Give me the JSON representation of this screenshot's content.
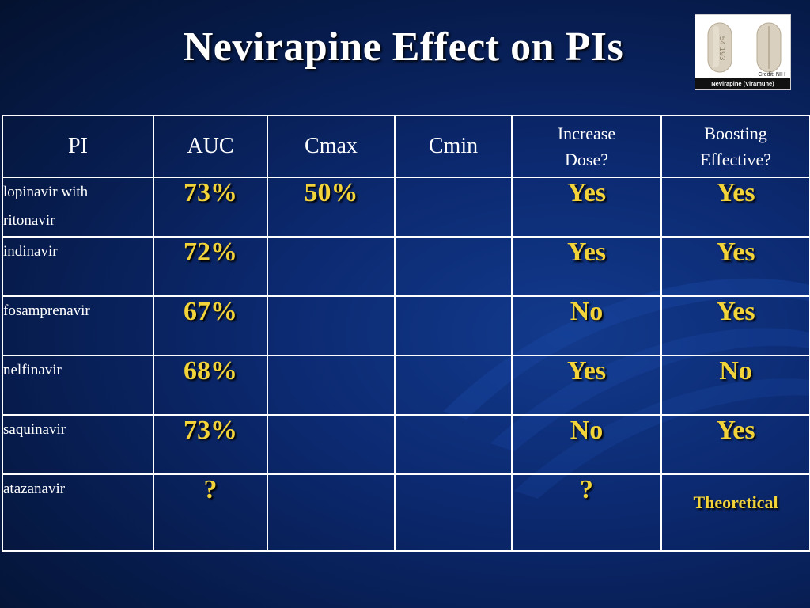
{
  "slide": {
    "title": "Nevirapine Effect on PIs"
  },
  "photo": {
    "credit": "Credit: NIH",
    "caption": "Nevirapine (Viramune)",
    "pill_imprint": "54 193"
  },
  "table": {
    "headers": [
      "PI",
      "AUC",
      "Cmax",
      "Cmin",
      "Increase",
      "Dose?",
      "Boosting",
      "Effective?"
    ],
    "rows": [
      {
        "name_line1": "lopinavir with",
        "name_line2": "ritonavir",
        "auc": "73%",
        "cmax": "50%",
        "cmin": "",
        "increase": "Yes",
        "boosting": "Yes"
      },
      {
        "name_line1": "indinavir",
        "name_line2": "",
        "auc": "72%",
        "cmax": "",
        "cmin": "",
        "increase": "Yes",
        "boosting": "Yes"
      },
      {
        "name_line1": "fosamprenavir",
        "name_line2": "",
        "auc": "67%",
        "cmax": "",
        "cmin": "",
        "increase": "No",
        "boosting": "Yes"
      },
      {
        "name_line1": "nelfinavir",
        "name_line2": "",
        "auc": "68%",
        "cmax": "",
        "cmin": "",
        "increase": "Yes",
        "boosting": "No"
      },
      {
        "name_line1": "saquinavir",
        "name_line2": "",
        "auc": "73%",
        "cmax": "",
        "cmin": "",
        "increase": "No",
        "boosting": "Yes"
      },
      {
        "name_line1": "atazanavir",
        "name_line2": "",
        "auc": "?",
        "cmax": "",
        "cmin": "",
        "increase": "?",
        "boosting": "Theoretical"
      }
    ]
  },
  "colors": {
    "background": "#0c2a72",
    "value_text": "#f2d33a",
    "header_text": "#ffffff",
    "grid_lines": "#ffffff"
  }
}
